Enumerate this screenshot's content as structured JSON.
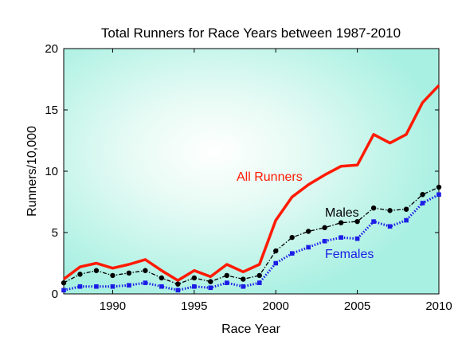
{
  "chart_data": {
    "type": "line",
    "title": "Total Runners for Race Years between 1987-2010",
    "xlabel": "Race Year",
    "ylabel": "Runners/10,000",
    "xlim": [
      1987,
      2010
    ],
    "ylim": [
      0,
      20
    ],
    "xticks": [
      1990,
      1995,
      2000,
      2005,
      2010
    ],
    "yticks": [
      0,
      5,
      10,
      15,
      20
    ],
    "grid": false,
    "background": "radial gradient, white center to aquamarine edges",
    "x": [
      1987,
      1988,
      1989,
      1990,
      1991,
      1992,
      1993,
      1994,
      1995,
      1996,
      1997,
      1998,
      1999,
      2000,
      2001,
      2002,
      2003,
      2004,
      2005,
      2006,
      2007,
      2008,
      2009,
      2010
    ],
    "series": [
      {
        "name": "All Runners",
        "color": "#ff1a00",
        "style": "solid",
        "values": [
          1.2,
          2.2,
          2.5,
          2.1,
          2.4,
          2.8,
          1.9,
          1.1,
          1.9,
          1.4,
          2.4,
          1.8,
          2.4,
          6.0,
          7.9,
          8.9,
          9.7,
          10.4,
          10.5,
          13.0,
          12.3,
          13.0,
          15.6,
          17.0
        ]
      },
      {
        "name": "Males",
        "color": "#000000",
        "style": "dashdot-markers",
        "values": [
          0.9,
          1.6,
          1.9,
          1.5,
          1.7,
          1.9,
          1.3,
          0.8,
          1.3,
          1.0,
          1.5,
          1.2,
          1.5,
          3.5,
          4.6,
          5.1,
          5.4,
          5.8,
          5.9,
          7.0,
          6.8,
          6.9,
          8.1,
          8.7
        ]
      },
      {
        "name": "Females",
        "color": "#1c1ce6",
        "style": "dotted-markers",
        "values": [
          0.3,
          0.6,
          0.6,
          0.6,
          0.7,
          0.9,
          0.6,
          0.3,
          0.6,
          0.5,
          0.9,
          0.6,
          0.9,
          2.5,
          3.3,
          3.8,
          4.3,
          4.6,
          4.5,
          5.9,
          5.5,
          6.0,
          7.4,
          8.1
        ]
      }
    ]
  }
}
